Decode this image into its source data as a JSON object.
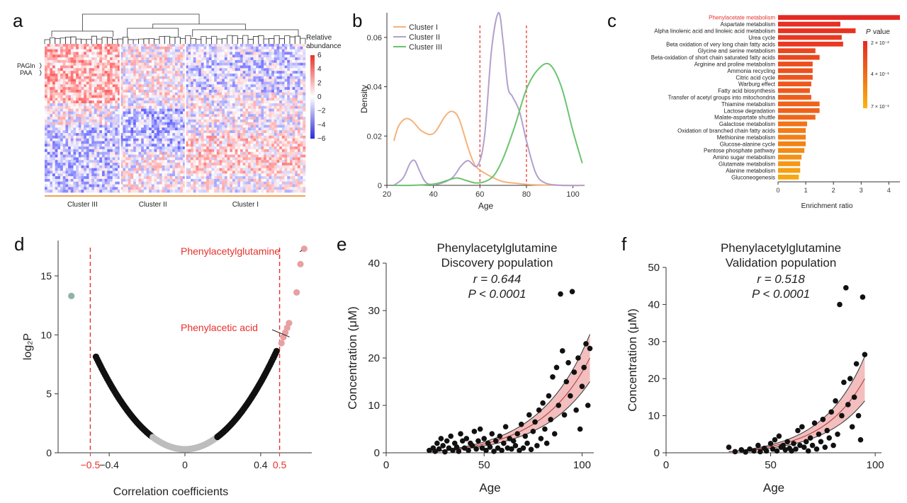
{
  "panel_labels": [
    "a",
    "b",
    "c",
    "d",
    "e",
    "f"
  ],
  "colors": {
    "cluster_I": "#f5b27a",
    "cluster_II": "#b3a0cc",
    "cluster_III": "#6ac46e",
    "highlight_red": "#e8302a",
    "heat_high": "#e8302a",
    "heat_low": "#2b2bd9",
    "fit_band": "#f0b3b3",
    "dot_black": "#111111",
    "dot_grey": "#bdbdbd",
    "dot_pink": "#e8a0a0",
    "dot_teal": "#8fb3a6",
    "cluster_bar": "#f0a050"
  },
  "chart_data": [
    {
      "id": "a",
      "type": "heatmap",
      "legend_title": "Relative abundance",
      "colorbar_ticks": [
        6,
        4,
        2,
        0,
        -2,
        -4,
        -6
      ],
      "row_labels": [
        "PAGln",
        "PAA"
      ],
      "cluster_labels": [
        "Cluster III",
        "Cluster II",
        "Cluster I"
      ],
      "cluster_fractions": [
        0.29,
        0.25,
        0.46
      ]
    },
    {
      "id": "b",
      "type": "line",
      "xlabel": "Age",
      "ylabel": "Density",
      "xlim": [
        20,
        105
      ],
      "ylim": [
        0,
        0.07
      ],
      "xticks": [
        20,
        40,
        60,
        80,
        100
      ],
      "yticks": [
        0,
        0.02,
        0.04,
        0.06
      ],
      "ytick_labels": [
        "0",
        "0.02",
        "0.04",
        "0.06"
      ],
      "vlines": [
        60,
        80
      ],
      "legend_position": "top-left",
      "series": [
        {
          "name": "Cluster I",
          "x": [
            23,
            25,
            28,
            31,
            35,
            40,
            45,
            48,
            51,
            55,
            58,
            62,
            66,
            70,
            76,
            82,
            90,
            100,
            105
          ],
          "values": [
            0.018,
            0.024,
            0.027,
            0.026,
            0.022,
            0.021,
            0.028,
            0.03,
            0.027,
            0.015,
            0.008,
            0.005,
            0.003,
            0.0015,
            0.0008,
            0.0003,
            0.0001,
            0.0,
            0.0
          ]
        },
        {
          "name": "Cluster II",
          "x": [
            23,
            27,
            30,
            32,
            34,
            37,
            42,
            48,
            52,
            55,
            59,
            62,
            65,
            68,
            70,
            72,
            74,
            77,
            80,
            84,
            88,
            95,
            105
          ],
          "values": [
            0.0,
            0.003,
            0.009,
            0.01,
            0.006,
            0.001,
            0.0005,
            0.003,
            0.008,
            0.01,
            0.008,
            0.02,
            0.055,
            0.07,
            0.058,
            0.04,
            0.036,
            0.03,
            0.018,
            0.005,
            0.001,
            0.0,
            0.0
          ]
        },
        {
          "name": "Cluster III",
          "x": [
            23,
            30,
            40,
            46,
            50,
            54,
            58,
            62,
            66,
            70,
            75,
            80,
            85,
            90,
            95,
            100,
            104
          ],
          "values": [
            0.0,
            0.0,
            0.0005,
            0.002,
            0.003,
            0.002,
            0.001,
            0.0015,
            0.004,
            0.011,
            0.024,
            0.039,
            0.047,
            0.049,
            0.04,
            0.022,
            0.009
          ]
        }
      ]
    },
    {
      "id": "c",
      "type": "bar",
      "orientation": "horizontal",
      "xlabel": "Enrichment ratio",
      "xlim": [
        0,
        4.4
      ],
      "xticks": [
        0,
        1,
        2,
        3,
        4
      ],
      "legend_title": "P value",
      "colorbar_ticks": [
        "2 × 10⁻²",
        "4 × 10⁻¹",
        "7 × 10⁻¹"
      ],
      "highlight_category": "Phenylacetate metabolism",
      "categories": [
        "Phenylacetate metabolism",
        "Aspartate metabolism",
        "Alpha linolenic acid and linoleic acid metabolism",
        "Urea cycle",
        "Beta oxidation of very long chain fatty acids",
        "Glycine and serine metabolism",
        "Beta-oxidation of short chain saturated fatty acids",
        "Arginine and proline metabolism",
        "Ammonia recycling",
        "Citric acid cycle",
        "Warburg effect",
        "Fatty acid biosynthesis",
        "Transfer of acetyl groups into mitochondria",
        "Thiamine metabolism",
        "Lactose degradation",
        "Malate-aspartate shuttle",
        "Galactose metabolism",
        "Oxidation of branched chain fatty acids",
        "Methionine metabolism",
        "Glucose-alanine cycle",
        "Pentose phosphate pathway",
        "Amino sugar metabolism",
        "Glutamate metabolism",
        "Alanine metabolism",
        "Gluconeogenesis"
      ],
      "values": [
        4.4,
        2.25,
        2.8,
        2.3,
        2.35,
        1.35,
        1.5,
        1.25,
        1.25,
        1.25,
        1.2,
        1.15,
        1.2,
        1.5,
        1.5,
        1.35,
        1.05,
        1.0,
        1.0,
        1.0,
        0.95,
        0.85,
        0.8,
        0.8,
        0.75
      ],
      "pvalue_rank": [
        0.0,
        0.05,
        0.08,
        0.12,
        0.12,
        0.22,
        0.22,
        0.28,
        0.3,
        0.32,
        0.34,
        0.36,
        0.38,
        0.42,
        0.42,
        0.45,
        0.55,
        0.6,
        0.62,
        0.65,
        0.7,
        0.75,
        0.8,
        0.85,
        0.9
      ]
    },
    {
      "id": "d",
      "type": "scatter",
      "xlabel": "Correlation coefficients",
      "ylabel": "log₂P",
      "xlim": [
        -0.67,
        0.67
      ],
      "ylim": [
        0,
        18
      ],
      "xticks": [
        -0.4,
        0,
        0.4
      ],
      "yticks": [
        0,
        5,
        10,
        15
      ],
      "red_ticks": [
        -0.5,
        0.5
      ],
      "vlines": [
        -0.5,
        0.5
      ],
      "annotations": [
        {
          "text": "Phenylacetylglutamine",
          "x": 0.63,
          "y": 17.3
        },
        {
          "text": "Phenylacetic acid",
          "x": 0.56,
          "y": 10.3
        }
      ],
      "outliers": [
        {
          "x": -0.6,
          "y": 13.3,
          "group": "teal"
        },
        {
          "x": 0.51,
          "y": 9.3,
          "group": "pink"
        },
        {
          "x": 0.52,
          "y": 9.8,
          "group": "pink"
        },
        {
          "x": 0.53,
          "y": 10.2,
          "group": "pink"
        },
        {
          "x": 0.54,
          "y": 10.6,
          "group": "pink"
        },
        {
          "x": 0.55,
          "y": 11.0,
          "group": "pink"
        },
        {
          "x": 0.59,
          "y": 13.6,
          "group": "pink"
        },
        {
          "x": 0.61,
          "y": 16.0,
          "group": "pink"
        },
        {
          "x": 0.63,
          "y": 17.3,
          "group": "pink"
        }
      ]
    },
    {
      "id": "e",
      "type": "scatter",
      "title": "Phenylacetylglutamine",
      "subtitle": "Discovery population",
      "stat_r": "r = 0.644",
      "stat_p": "P < 0.0001",
      "xlabel": "Age",
      "ylabel": "Concentration (μM)",
      "xlim": [
        0,
        106
      ],
      "ylim": [
        0,
        40
      ],
      "xticks": [
        0,
        50,
        100
      ],
      "yticks": [
        0,
        10,
        20,
        30,
        40
      ],
      "fit": {
        "x_start": 22,
        "x_end": 104,
        "y_start": 0.2,
        "y_end": 20.0,
        "band_low": 15.0,
        "band_high": 25.0
      },
      "points": [
        [
          22,
          0.5
        ],
        [
          24,
          1.0
        ],
        [
          25,
          0.3
        ],
        [
          26,
          2.0
        ],
        [
          27,
          0.8
        ],
        [
          28,
          3.0
        ],
        [
          29,
          1.5
        ],
        [
          30,
          0.2
        ],
        [
          31,
          2.5
        ],
        [
          32,
          1.0
        ],
        [
          33,
          3.5
        ],
        [
          34,
          0.5
        ],
        [
          35,
          2.0
        ],
        [
          36,
          1.2
        ],
        [
          37,
          0.3
        ],
        [
          38,
          4.0
        ],
        [
          39,
          2.5
        ],
        [
          40,
          1.0
        ],
        [
          41,
          3.0
        ],
        [
          42,
          0.5
        ],
        [
          43,
          2.0
        ],
        [
          44,
          1.5
        ],
        [
          45,
          4.5
        ],
        [
          46,
          0.8
        ],
        [
          47,
          2.5
        ],
        [
          48,
          5.0
        ],
        [
          49,
          1.0
        ],
        [
          50,
          3.0
        ],
        [
          51,
          0.5
        ],
        [
          52,
          2.0
        ],
        [
          53,
          1.2
        ],
        [
          54,
          4.0
        ],
        [
          55,
          0.3
        ],
        [
          56,
          2.5
        ],
        [
          57,
          1.0
        ],
        [
          58,
          3.5
        ],
        [
          59,
          0.5
        ],
        [
          60,
          2.0
        ],
        [
          61,
          5.5
        ],
        [
          62,
          1.0
        ],
        [
          63,
          3.0
        ],
        [
          64,
          0.8
        ],
        [
          65,
          2.5
        ],
        [
          66,
          1.5
        ],
        [
          67,
          4.0
        ],
        [
          68,
          0.5
        ],
        [
          69,
          6.0
        ],
        [
          70,
          1.0
        ],
        [
          71,
          3.5
        ],
        [
          72,
          2.0
        ],
        [
          73,
          8.0
        ],
        [
          74,
          0.7
        ],
        [
          75,
          4.5
        ],
        [
          76,
          6.5
        ],
        [
          77,
          1.5
        ],
        [
          78,
          9.0
        ],
        [
          79,
          3.0
        ],
        [
          80,
          10.5
        ],
        [
          81,
          5.0
        ],
        [
          82,
          2.0
        ],
        [
          83,
          12.0
        ],
        [
          84,
          7.0
        ],
        [
          85,
          16.0
        ],
        [
          86,
          4.0
        ],
        [
          87,
          18.0
        ],
        [
          88,
          10.0
        ],
        [
          89,
          33.5
        ],
        [
          90,
          21.5
        ],
        [
          91,
          8.0
        ],
        [
          92,
          15.0
        ],
        [
          93,
          19.0
        ],
        [
          94,
          12.0
        ],
        [
          95,
          34.0
        ],
        [
          96,
          17.0
        ],
        [
          97,
          9.0
        ],
        [
          98,
          20.0
        ],
        [
          99,
          5.0
        ],
        [
          100,
          14.0
        ],
        [
          101,
          18.0
        ],
        [
          102,
          23.0
        ],
        [
          103,
          10.0
        ],
        [
          104,
          22.0
        ]
      ]
    },
    {
      "id": "f",
      "type": "scatter",
      "title": "Phenylacetylglutamine",
      "subtitle": "Validation population",
      "stat_r": "r = 0.518",
      "stat_p": "P < 0.0001",
      "xlabel": "Age",
      "ylabel": "Concentration (μM)",
      "xlim": [
        0,
        103
      ],
      "ylim": [
        0,
        50
      ],
      "xticks": [
        0,
        50,
        100
      ],
      "yticks": [
        0,
        10,
        20,
        30,
        40,
        50
      ],
      "fit": {
        "x_start": 30,
        "x_end": 95,
        "y_start": 0.3,
        "y_end": 20.0,
        "band_low": 14.0,
        "band_high": 26.0
      },
      "points": [
        [
          30,
          1.5
        ],
        [
          33,
          0.3
        ],
        [
          36,
          0.8
        ],
        [
          38,
          0.2
        ],
        [
          40,
          1.0
        ],
        [
          42,
          0.5
        ],
        [
          44,
          2.0
        ],
        [
          45,
          0.3
        ],
        [
          47,
          1.2
        ],
        [
          48,
          0.5
        ],
        [
          50,
          2.5
        ],
        [
          51,
          1.0
        ],
        [
          52,
          3.5
        ],
        [
          53,
          0.5
        ],
        [
          54,
          4.5
        ],
        [
          55,
          1.5
        ],
        [
          56,
          2.0
        ],
        [
          57,
          0.8
        ],
        [
          58,
          3.0
        ],
        [
          59,
          1.2
        ],
        [
          60,
          0.5
        ],
        [
          61,
          2.5
        ],
        [
          62,
          1.0
        ],
        [
          63,
          6.0
        ],
        [
          64,
          2.0
        ],
        [
          65,
          7.0
        ],
        [
          66,
          1.5
        ],
        [
          67,
          3.0
        ],
        [
          68,
          0.5
        ],
        [
          69,
          4.0
        ],
        [
          70,
          2.0
        ],
        [
          71,
          8.0
        ],
        [
          72,
          1.0
        ],
        [
          73,
          5.0
        ],
        [
          74,
          3.0
        ],
        [
          75,
          9.0
        ],
        [
          76,
          1.5
        ],
        [
          77,
          6.0
        ],
        [
          78,
          4.0
        ],
        [
          79,
          11.0
        ],
        [
          80,
          2.0
        ],
        [
          81,
          14.0
        ],
        [
          82,
          5.0
        ],
        [
          83,
          40.0
        ],
        [
          84,
          10.0
        ],
        [
          85,
          19.0
        ],
        [
          86,
          44.5
        ],
        [
          87,
          13.0
        ],
        [
          88,
          20.0
        ],
        [
          89,
          7.0
        ],
        [
          90,
          15.0
        ],
        [
          91,
          24.0
        ],
        [
          92,
          10.0
        ],
        [
          93,
          3.5
        ],
        [
          94,
          42.0
        ],
        [
          95,
          26.5
        ]
      ]
    }
  ]
}
